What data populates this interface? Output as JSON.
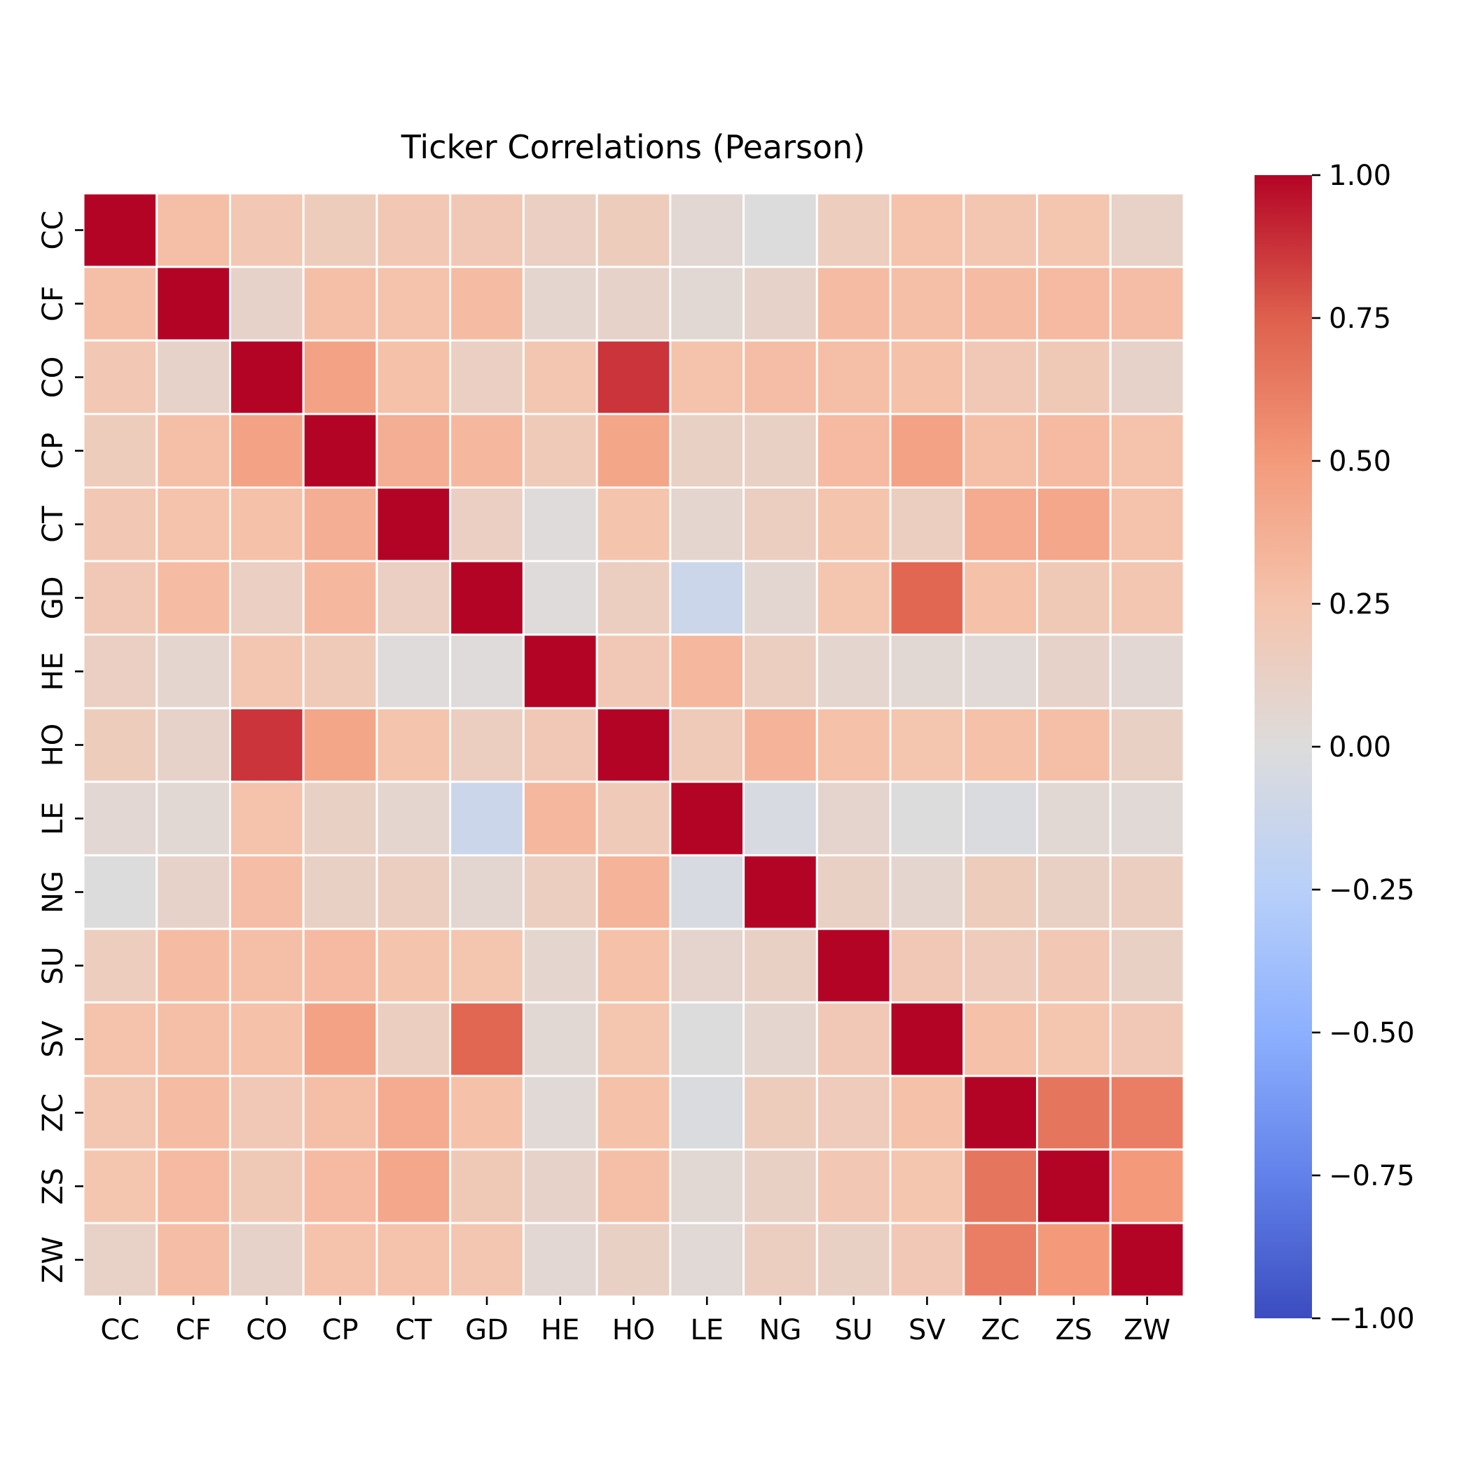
{
  "chart_data": {
    "type": "heatmap",
    "title": "Ticker Correlations (Pearson)",
    "xlabel": "",
    "ylabel": "",
    "categories": [
      "CC",
      "CF",
      "CO",
      "CP",
      "CT",
      "GD",
      "HE",
      "HO",
      "LE",
      "NG",
      "SU",
      "SV",
      "ZC",
      "ZS",
      "ZW"
    ],
    "values": [
      [
        1.0,
        0.28,
        0.22,
        0.17,
        0.22,
        0.21,
        0.14,
        0.17,
        0.05,
        -0.01,
        0.16,
        0.26,
        0.23,
        0.24,
        0.11
      ],
      [
        0.28,
        1.0,
        0.1,
        0.28,
        0.26,
        0.3,
        0.07,
        0.1,
        0.04,
        0.1,
        0.3,
        0.28,
        0.3,
        0.31,
        0.29
      ],
      [
        0.22,
        0.1,
        1.0,
        0.45,
        0.27,
        0.14,
        0.23,
        0.87,
        0.26,
        0.29,
        0.28,
        0.27,
        0.21,
        0.2,
        0.1
      ],
      [
        0.17,
        0.28,
        0.45,
        1.0,
        0.38,
        0.32,
        0.19,
        0.43,
        0.13,
        0.13,
        0.31,
        0.45,
        0.28,
        0.31,
        0.26
      ],
      [
        0.22,
        0.26,
        0.27,
        0.38,
        1.0,
        0.14,
        0.01,
        0.25,
        0.07,
        0.15,
        0.25,
        0.15,
        0.4,
        0.42,
        0.26
      ],
      [
        0.21,
        0.3,
        0.14,
        0.32,
        0.14,
        1.0,
        0.01,
        0.15,
        -0.12,
        0.06,
        0.24,
        0.72,
        0.27,
        0.2,
        0.23
      ],
      [
        0.14,
        0.07,
        0.23,
        0.19,
        0.01,
        0.01,
        1.0,
        0.21,
        0.33,
        0.15,
        0.07,
        0.04,
        0.03,
        0.1,
        0.05
      ],
      [
        0.17,
        0.1,
        0.87,
        0.43,
        0.25,
        0.15,
        0.21,
        1.0,
        0.19,
        0.35,
        0.27,
        0.24,
        0.27,
        0.28,
        0.13
      ],
      [
        0.05,
        0.04,
        0.26,
        0.13,
        0.07,
        -0.12,
        0.33,
        0.19,
        1.0,
        -0.04,
        0.08,
        0.0,
        -0.02,
        0.04,
        0.03
      ],
      [
        -0.01,
        0.1,
        0.29,
        0.13,
        0.15,
        0.06,
        0.15,
        0.35,
        -0.04,
        1.0,
        0.12,
        0.07,
        0.17,
        0.13,
        0.15
      ],
      [
        0.16,
        0.3,
        0.28,
        0.31,
        0.25,
        0.24,
        0.07,
        0.27,
        0.08,
        0.12,
        1.0,
        0.21,
        0.18,
        0.22,
        0.13
      ],
      [
        0.26,
        0.28,
        0.27,
        0.45,
        0.15,
        0.72,
        0.04,
        0.24,
        0.0,
        0.07,
        0.21,
        1.0,
        0.27,
        0.24,
        0.21
      ],
      [
        0.23,
        0.3,
        0.21,
        0.28,
        0.4,
        0.27,
        0.03,
        0.27,
        -0.02,
        0.17,
        0.18,
        0.27,
        1.0,
        0.66,
        0.62
      ],
      [
        0.24,
        0.31,
        0.2,
        0.31,
        0.42,
        0.2,
        0.1,
        0.28,
        0.04,
        0.13,
        0.22,
        0.24,
        0.66,
        1.0,
        0.5
      ],
      [
        0.11,
        0.29,
        0.1,
        0.26,
        0.26,
        0.23,
        0.05,
        0.13,
        0.03,
        0.15,
        0.13,
        0.21,
        0.62,
        0.5,
        1.0
      ]
    ],
    "colorbar": {
      "min": -1.0,
      "max": 1.0,
      "ticks": [
        "1.00",
        "0.75",
        "0.50",
        "0.25",
        "0.00",
        "−0.25",
        "−0.50",
        "−0.75",
        "−1.00"
      ],
      "tick_values": [
        1.0,
        0.75,
        0.5,
        0.25,
        0.0,
        -0.25,
        -0.5,
        -0.75,
        -1.0
      ],
      "colormap": "coolwarm",
      "low_color": "#3b4cc0",
      "mid_color": "#dddcdc",
      "high_color": "#b40426"
    },
    "grid": false,
    "legend": "colorbar-right"
  }
}
